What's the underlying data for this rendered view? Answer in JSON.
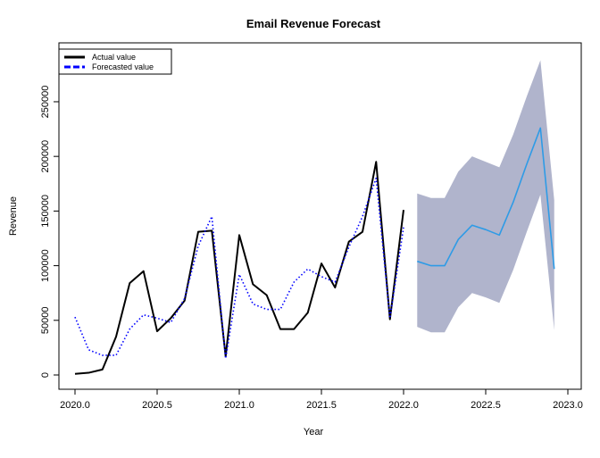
{
  "chart_data": {
    "type": "line",
    "title": "Email Revenue Forecast",
    "xlabel": "Year",
    "ylabel": "Revenue",
    "xlim": [
      2020.0,
      2023.0
    ],
    "ylim": [
      0,
      290000
    ],
    "x_ticks": [
      2020.0,
      2020.5,
      2021.0,
      2021.5,
      2022.0,
      2022.5,
      2023.0
    ],
    "x_tick_labels": [
      "2020.0",
      "2020.5",
      "2021.0",
      "2021.5",
      "2022.0",
      "2022.5",
      "2023.0"
    ],
    "y_ticks": [
      0,
      50000,
      100000,
      150000,
      200000,
      250000
    ],
    "y_tick_labels": [
      "0",
      "50000",
      "100000",
      "150000",
      "200000",
      "250000"
    ],
    "legend": {
      "position": "top-left",
      "entries": [
        "Actual value",
        "Forecasted value"
      ]
    },
    "grid": false,
    "series": [
      {
        "name": "Actual value",
        "color": "#000000",
        "style": "solid",
        "x": [
          2020.0,
          2020.083,
          2020.167,
          2020.25,
          2020.333,
          2020.417,
          2020.5,
          2020.583,
          2020.667,
          2020.75,
          2020.833,
          2020.917,
          2021.0,
          2021.083,
          2021.167,
          2021.25,
          2021.333,
          2021.417,
          2021.5,
          2021.583,
          2021.667,
          2021.75,
          2021.833,
          2021.917,
          2022.0
        ],
        "y": [
          1000,
          2000,
          5000,
          35000,
          84000,
          95000,
          40000,
          52000,
          68000,
          131000,
          132000,
          17000,
          128000,
          83000,
          73000,
          42000,
          42000,
          57000,
          102000,
          80000,
          122000,
          131000,
          195000,
          51000,
          151000
        ]
      },
      {
        "name": "Forecasted value",
        "color": "#0000ff",
        "style": "dotted",
        "x": [
          2020.0,
          2020.083,
          2020.167,
          2020.25,
          2020.333,
          2020.417,
          2020.5,
          2020.583,
          2020.667,
          2020.75,
          2020.833,
          2020.917,
          2021.0,
          2021.083,
          2021.167,
          2021.25,
          2021.333,
          2021.417,
          2021.5,
          2021.583,
          2021.667,
          2021.75,
          2021.833,
          2021.917,
          2022.0
        ],
        "y": [
          53000,
          23000,
          18000,
          18000,
          42000,
          55000,
          52000,
          48000,
          70000,
          118000,
          145000,
          15000,
          92000,
          65000,
          60000,
          60000,
          85000,
          97000,
          90000,
          85000,
          117000,
          145000,
          180000,
          52000,
          135000
        ]
      },
      {
        "name": "Forecast",
        "color": "#2e9be6",
        "style": "solid",
        "x": [
          2022.083,
          2022.167,
          2022.25,
          2022.333,
          2022.417,
          2022.5,
          2022.583,
          2022.667,
          2022.75,
          2022.833,
          2022.917
        ],
        "y": [
          104000,
          100000,
          100000,
          124000,
          137000,
          133000,
          128000,
          158000,
          193000,
          226000,
          97000
        ],
        "lower": [
          44000,
          39000,
          39000,
          62000,
          75000,
          71000,
          66000,
          96000,
          131000,
          165000,
          41000
        ],
        "upper": [
          166000,
          162000,
          162000,
          186000,
          200000,
          195000,
          190000,
          220000,
          255000,
          288000,
          160000
        ],
        "band_color": "#b0b4cc"
      }
    ]
  }
}
